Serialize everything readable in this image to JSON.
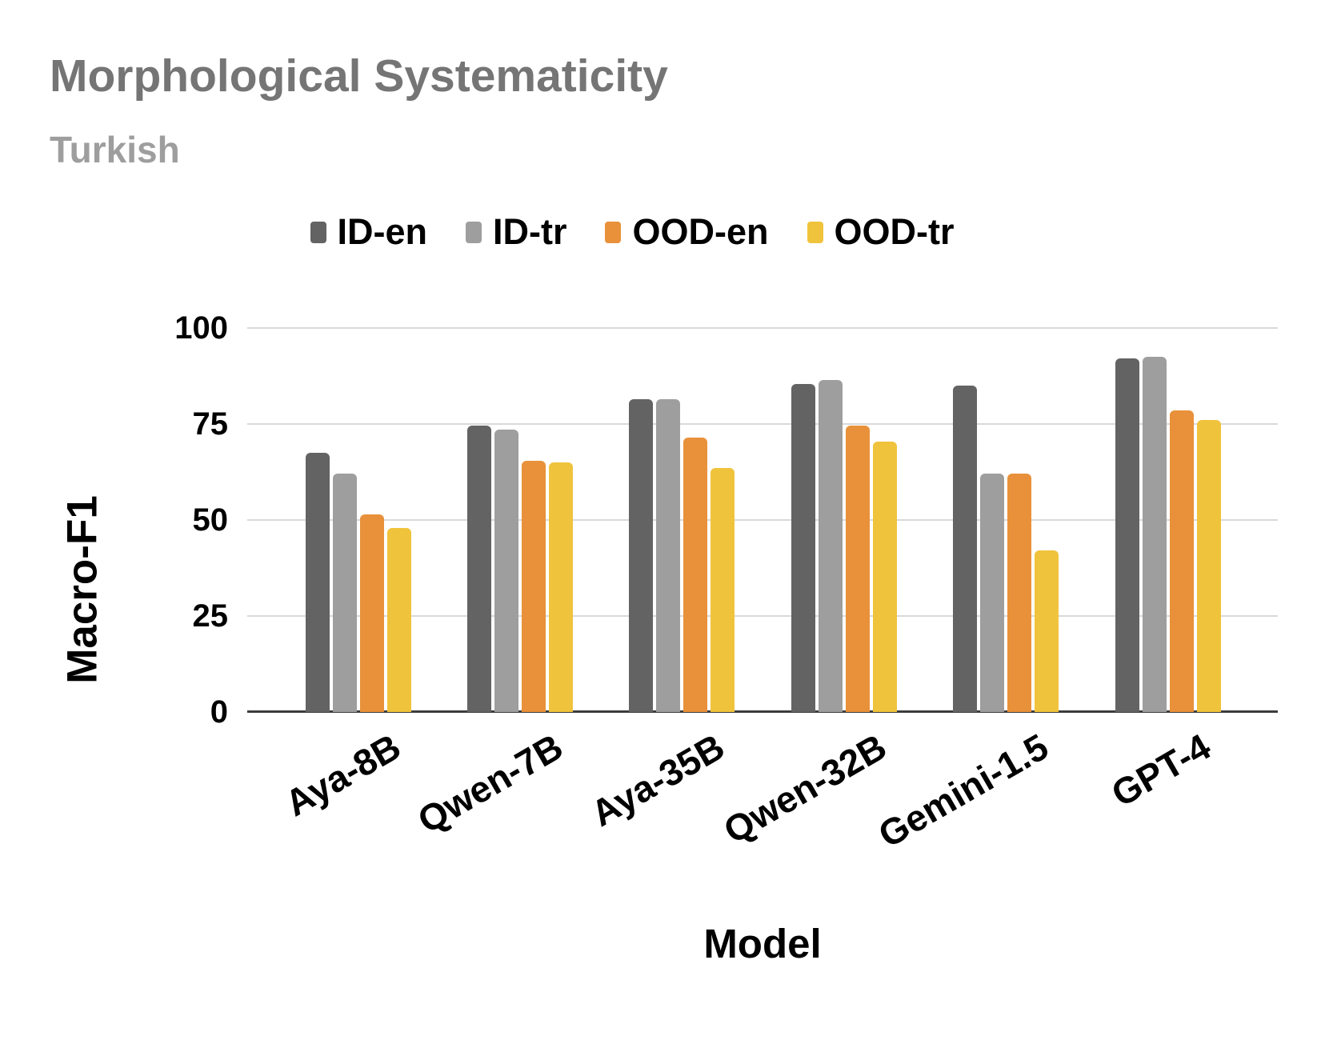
{
  "header": {
    "title": "Morphological Systematicity",
    "subtitle": "Turkish"
  },
  "chart_data": {
    "type": "bar",
    "title": "Morphological Systematicity",
    "subtitle": "Turkish",
    "xlabel": "Model",
    "ylabel": "Macro-F1",
    "ylim": [
      0,
      100
    ],
    "yticks": [
      0,
      25,
      50,
      75,
      100
    ],
    "grid": true,
    "legend_position": "top",
    "categories": [
      "Aya-8B",
      "Qwen-7B",
      "Aya-35B",
      "Qwen-32B",
      "Gemini-1.5",
      "GPT-4"
    ],
    "series": [
      {
        "name": "ID-en",
        "color": "#636363",
        "values": [
          67.5,
          74.5,
          81.5,
          85.5,
          85,
          92
        ]
      },
      {
        "name": "ID-tr",
        "color": "#9e9e9e",
        "values": [
          62,
          73.5,
          81.5,
          86.5,
          62,
          92.5
        ]
      },
      {
        "name": "OOD-en",
        "color": "#e8913a",
        "values": [
          51.5,
          65.5,
          71.5,
          74.5,
          62,
          78.5
        ]
      },
      {
        "name": "OOD-tr",
        "color": "#f0c33c",
        "values": [
          48,
          65,
          63.5,
          70.5,
          42,
          76
        ]
      }
    ]
  },
  "colors": {
    "title": "#757575",
    "subtitle": "#9e9e9e",
    "gridline": "#d9d9d9",
    "axis_line": "#3c3c3c",
    "text": "#000000"
  }
}
